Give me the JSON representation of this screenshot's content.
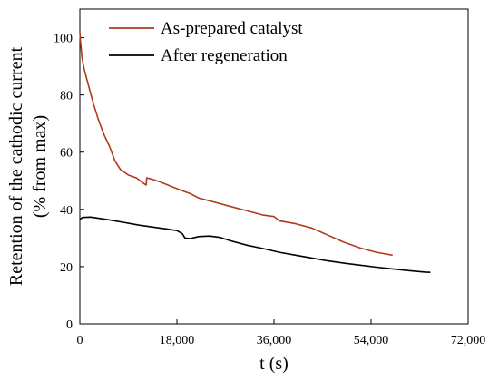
{
  "chart_data": {
    "type": "line",
    "title": "",
    "xlabel": "t (s)",
    "ylabel_line1": "Retention of the cathodic current",
    "ylabel_line2": "(% from max)",
    "xlim": [
      0,
      72000
    ],
    "ylim": [
      0,
      110
    ],
    "xticks": [
      0,
      18000,
      36000,
      54000,
      72000
    ],
    "xtick_labels": [
      "0",
      "18,000",
      "36,000",
      "54,000",
      "72,000"
    ],
    "yticks": [
      0,
      20,
      40,
      60,
      80,
      100
    ],
    "ytick_labels": [
      "0",
      "20",
      "40",
      "60",
      "80",
      "100"
    ],
    "grid": false,
    "legend_position": "top-center",
    "series": [
      {
        "name": "As-prepared catalyst",
        "color": "#b03a1e",
        "points": [
          [
            0,
            102
          ],
          [
            150,
            98
          ],
          [
            400,
            93
          ],
          [
            800,
            89
          ],
          [
            1500,
            84
          ],
          [
            2500,
            77
          ],
          [
            3500,
            71
          ],
          [
            4500,
            66
          ],
          [
            5500,
            62
          ],
          [
            6500,
            57
          ],
          [
            7500,
            54
          ],
          [
            9000,
            52
          ],
          [
            10500,
            51
          ],
          [
            11500,
            49.5
          ],
          [
            12300,
            48.5
          ],
          [
            12400,
            51
          ],
          [
            13500,
            50.5
          ],
          [
            15000,
            49.5
          ],
          [
            17000,
            48
          ],
          [
            19000,
            46.5
          ],
          [
            20500,
            45.5
          ],
          [
            22000,
            44
          ],
          [
            25000,
            42.5
          ],
          [
            28000,
            41
          ],
          [
            31000,
            39.5
          ],
          [
            34000,
            38
          ],
          [
            36000,
            37.5
          ],
          [
            37000,
            36
          ],
          [
            40000,
            35
          ],
          [
            43000,
            33.5
          ],
          [
            46000,
            31
          ],
          [
            49000,
            28.5
          ],
          [
            52000,
            26.5
          ],
          [
            55000,
            25
          ],
          [
            58000,
            24
          ]
        ]
      },
      {
        "name": "After regeneration",
        "color": "#000000",
        "points": [
          [
            0,
            36.5
          ],
          [
            500,
            37.2
          ],
          [
            2000,
            37.3
          ],
          [
            5000,
            36.5
          ],
          [
            8000,
            35.5
          ],
          [
            11000,
            34.5
          ],
          [
            14000,
            33.7
          ],
          [
            16000,
            33.2
          ],
          [
            18000,
            32.6
          ],
          [
            19000,
            31.5
          ],
          [
            19500,
            30
          ],
          [
            20500,
            29.8
          ],
          [
            22000,
            30.5
          ],
          [
            24000,
            30.7
          ],
          [
            26000,
            30.2
          ],
          [
            28000,
            29
          ],
          [
            31000,
            27.5
          ],
          [
            34000,
            26.3
          ],
          [
            37000,
            25
          ],
          [
            40000,
            24
          ],
          [
            43000,
            23
          ],
          [
            46000,
            22
          ],
          [
            49000,
            21.2
          ],
          [
            52000,
            20.5
          ],
          [
            55000,
            19.8
          ],
          [
            58000,
            19.2
          ],
          [
            61000,
            18.6
          ],
          [
            64000,
            18.1
          ],
          [
            65000,
            18
          ]
        ]
      }
    ]
  }
}
